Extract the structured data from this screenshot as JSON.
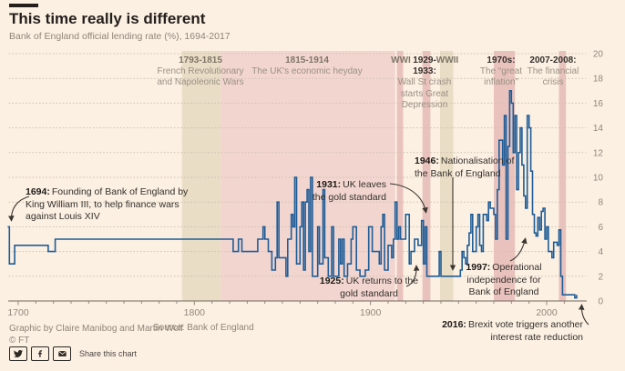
{
  "header": {
    "credit": "Graphic by Claire Manibog and Martin Wolf",
    "copyright": "© FT",
    "source": "Source: Bank of England",
    "share_label": "Share this chart",
    "share_icons": [
      "twitter-icon",
      "facebook-icon",
      "email-icon"
    ]
  },
  "eras": [
    {
      "range": "1793-1815",
      "desc": "French Revolutionary and Napoleonic Wars"
    },
    {
      "range": "1815-1914",
      "desc": "The UK's economic heyday"
    },
    {
      "range": "WWI",
      "desc": ""
    },
    {
      "range": "1929-1933:",
      "desc": "Wall St crash starts Great Depression"
    },
    {
      "range": "WWII",
      "desc": ""
    },
    {
      "range": "1970s:",
      "desc": "The “great inflation”"
    },
    {
      "range": "2007-2008:",
      "desc": "The financial crisis"
    }
  ],
  "annotations": [
    {
      "year": "1694:",
      "text": "Founding of Bank of England by King William III, to help finance wars against Louis XIV"
    },
    {
      "year": "1931:",
      "text": "UK leaves the gold standard"
    },
    {
      "year": "1946:",
      "text": "Nationalisation of the Bank of England"
    },
    {
      "year": "1925:",
      "text": "UK returns to the gold standard"
    },
    {
      "year": "1997:",
      "text": "Operational independence for Bank of England"
    },
    {
      "year": "2016:",
      "text": "Brexit vote triggers another interest rate reduction"
    }
  ],
  "chart_data": {
    "type": "line",
    "step": true,
    "title": "This time really is different",
    "subtitle": "Bank of England official lending rate (%), 1694-2017",
    "xlabel": "",
    "ylabel": "%",
    "x_range": [
      1694,
      2017
    ],
    "y_range": [
      0,
      20
    ],
    "y_ticks": [
      0,
      2,
      4,
      6,
      8,
      10,
      12,
      14,
      16,
      18,
      20
    ],
    "x_ticks": [
      1700,
      1800,
      1900,
      2000
    ],
    "x_minor": {
      "from": 1700,
      "to": 2010,
      "step": 10
    },
    "grid": "dotted-horizontal",
    "legend": "none",
    "line_color": "#1e5c97",
    "background": "#fcf0e3",
    "bands": [
      {
        "label": "1793-1815 French Revolutionary and Napoleonic Wars",
        "from": 1793,
        "to": 1815,
        "color": "#e9ddc6"
      },
      {
        "label": "1815-1914 The UK's economic heyday",
        "from": 1815,
        "to": 1914,
        "color": "#f2d5cf"
      },
      {
        "label": "WWI",
        "from": 1915,
        "to": 1918.5,
        "color": "#e9c2bd"
      },
      {
        "label": "1929-1933 Wall St crash starts Great Depression",
        "from": 1929.5,
        "to": 1934,
        "color": "#e9c2bd"
      },
      {
        "label": "WWII",
        "from": 1939.5,
        "to": 1947,
        "color": "#e9ddc6"
      },
      {
        "label": "1970s The great inflation",
        "from": 1970,
        "to": 1982,
        "color": "#e9c2bd"
      },
      {
        "label": "2007-2008 The financial crisis",
        "from": 2007,
        "to": 2011,
        "color": "#e9c2bd"
      }
    ],
    "series": [
      {
        "name": "Bank of England official lending rate (%)",
        "points": [
          [
            1694,
            6
          ],
          [
            1695,
            3
          ],
          [
            1698,
            4.5
          ],
          [
            1717,
            4
          ],
          [
            1721,
            5
          ],
          [
            1822,
            4
          ],
          [
            1825,
            5
          ],
          [
            1827,
            4
          ],
          [
            1836,
            5
          ],
          [
            1839,
            6
          ],
          [
            1840,
            5
          ],
          [
            1842,
            4
          ],
          [
            1844,
            2.5
          ],
          [
            1846,
            3.5
          ],
          [
            1847,
            8
          ],
          [
            1848,
            3.5
          ],
          [
            1852,
            2
          ],
          [
            1853,
            5
          ],
          [
            1855,
            7
          ],
          [
            1856,
            6
          ],
          [
            1857,
            10
          ],
          [
            1858,
            3
          ],
          [
            1860,
            6
          ],
          [
            1861,
            8
          ],
          [
            1862,
            2.5
          ],
          [
            1863,
            8
          ],
          [
            1864,
            9
          ],
          [
            1865,
            4
          ],
          [
            1866,
            10
          ],
          [
            1867,
            2
          ],
          [
            1870,
            6
          ],
          [
            1871,
            3
          ],
          [
            1873,
            9
          ],
          [
            1874,
            3.5
          ],
          [
            1876,
            2
          ],
          [
            1878,
            6
          ],
          [
            1879,
            2
          ],
          [
            1882,
            5
          ],
          [
            1883,
            3
          ],
          [
            1884,
            5
          ],
          [
            1885,
            2
          ],
          [
            1887,
            3
          ],
          [
            1889,
            5
          ],
          [
            1890,
            6
          ],
          [
            1892,
            2.5
          ],
          [
            1894,
            2
          ],
          [
            1897,
            2.5
          ],
          [
            1899,
            6
          ],
          [
            1901,
            4
          ],
          [
            1905,
            3
          ],
          [
            1906,
            6
          ],
          [
            1907,
            7
          ],
          [
            1908,
            2.5
          ],
          [
            1910,
            4.5
          ],
          [
            1912,
            3.5
          ],
          [
            1913,
            5
          ],
          [
            1914,
            8
          ],
          [
            1915,
            5
          ],
          [
            1916,
            6
          ],
          [
            1917,
            5
          ],
          [
            1920,
            7
          ],
          [
            1922,
            3
          ],
          [
            1923,
            4
          ],
          [
            1925,
            5
          ],
          [
            1927,
            4.5
          ],
          [
            1929,
            6.5
          ],
          [
            1930,
            3
          ],
          [
            1931,
            6
          ],
          [
            1932,
            2
          ],
          [
            1939,
            4
          ],
          [
            1940,
            2
          ],
          [
            1951,
            2.5
          ],
          [
            1952,
            4
          ],
          [
            1953,
            3.5
          ],
          [
            1954,
            3
          ],
          [
            1955,
            4.5
          ],
          [
            1956,
            5.5
          ],
          [
            1957,
            7
          ],
          [
            1958,
            4
          ],
          [
            1960,
            6
          ],
          [
            1961,
            7
          ],
          [
            1962,
            4.5
          ],
          [
            1963,
            4
          ],
          [
            1964,
            7
          ],
          [
            1966,
            6.5
          ],
          [
            1967,
            8
          ],
          [
            1968,
            7.5
          ],
          [
            1970,
            7
          ],
          [
            1971,
            5
          ],
          [
            1972,
            9
          ],
          [
            1973,
            13
          ],
          [
            1975,
            11
          ],
          [
            1976,
            15
          ],
          [
            1977,
            5
          ],
          [
            1978,
            12.5
          ],
          [
            1979,
            17
          ],
          [
            1980,
            16
          ],
          [
            1981,
            12
          ],
          [
            1982,
            15
          ],
          [
            1983,
            9
          ],
          [
            1984,
            12
          ],
          [
            1985,
            14
          ],
          [
            1986,
            11
          ],
          [
            1987,
            8.5
          ],
          [
            1988,
            7.5
          ],
          [
            1989,
            15
          ],
          [
            1990,
            14
          ],
          [
            1991,
            10.5
          ],
          [
            1992,
            7
          ],
          [
            1993,
            5.5
          ],
          [
            1994,
            5.25
          ],
          [
            1995,
            6.75
          ],
          [
            1996,
            5.75
          ],
          [
            1997,
            7.25
          ],
          [
            1998,
            7.5
          ],
          [
            1999,
            5
          ],
          [
            2000,
            6
          ],
          [
            2001,
            4
          ],
          [
            2003,
            3.5
          ],
          [
            2004,
            4.75
          ],
          [
            2006,
            4.5
          ],
          [
            2007,
            5.75
          ],
          [
            2008,
            2
          ],
          [
            2009,
            0.5
          ],
          [
            2016,
            0.25
          ],
          [
            2017,
            0.5
          ]
        ]
      }
    ]
  }
}
